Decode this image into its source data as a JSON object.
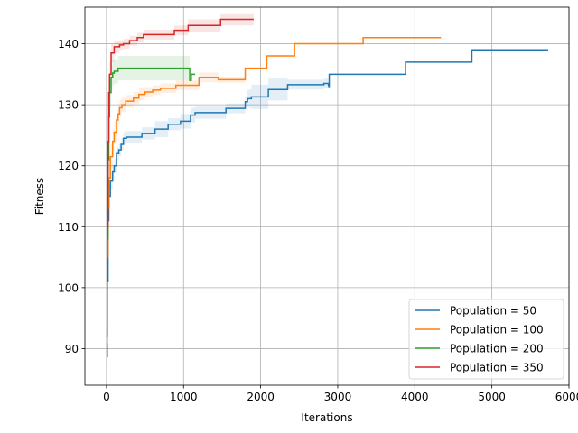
{
  "chart_data": {
    "type": "line",
    "title": "",
    "xlabel": "Iterations",
    "ylabel": "Fitness",
    "xlim": [
      -280,
      6000
    ],
    "ylim": [
      84,
      146
    ],
    "xticks": [
      0,
      1000,
      2000,
      3000,
      4000,
      5000,
      6000
    ],
    "yticks": [
      90,
      100,
      110,
      120,
      130,
      140
    ],
    "grid": true,
    "legend_position": "bottom-right",
    "series": [
      {
        "name": "Population = 50",
        "color": "#1f77b4",
        "x": [
          0,
          10,
          20,
          30,
          50,
          80,
          100,
          130,
          160,
          190,
          220,
          260,
          460,
          630,
          800,
          960,
          1090,
          1150,
          1550,
          1800,
          1830,
          1880,
          2100,
          2350,
          2820,
          2880,
          2885,
          2890,
          3880,
          4740,
          5730
        ],
        "y": [
          88.7,
          101,
          111,
          115,
          117.5,
          119,
          120,
          122,
          122.6,
          123.5,
          124.5,
          124.7,
          125.3,
          126,
          126.8,
          127.3,
          128.3,
          128.7,
          129.4,
          130.5,
          131,
          131.3,
          132.5,
          133.3,
          133.5,
          133.2,
          133,
          135,
          137,
          139,
          139
        ],
        "band_halfwidth": [
          2,
          2,
          2,
          2,
          1.5,
          1.2,
          1.2,
          1,
          1,
          1,
          1,
          1,
          1,
          1.3,
          1,
          1.2,
          1.2,
          1,
          0.8,
          0.8,
          1.5,
          2,
          1.8,
          0.8,
          0.8,
          0.5,
          0,
          0,
          0,
          0,
          0
        ]
      },
      {
        "name": "Population = 100",
        "color": "#ff7f0e",
        "x": [
          0,
          10,
          20,
          30,
          50,
          80,
          100,
          130,
          150,
          170,
          200,
          250,
          350,
          420,
          500,
          600,
          700,
          900,
          1200,
          1450,
          1800,
          2080,
          2440,
          3330,
          4340
        ],
        "y": [
          91,
          105,
          113,
          118,
          121.5,
          124,
          125.5,
          127.5,
          128.5,
          129.5,
          130,
          130.6,
          131.1,
          131.7,
          132.1,
          132.4,
          132.7,
          133.2,
          134.5,
          134.1,
          136,
          138,
          140,
          141,
          141
        ],
        "band_halfwidth": [
          2,
          2,
          2,
          2,
          2,
          2,
          1.8,
          1.6,
          1.5,
          1.4,
          1.2,
          1,
          1,
          1,
          0.8,
          0.8,
          0.8,
          0.8,
          0.8,
          0.5,
          0,
          0,
          0,
          0,
          0
        ]
      },
      {
        "name": "Population = 200",
        "color": "#2ca02c",
        "x": [
          0,
          10,
          20,
          30,
          40,
          60,
          80,
          100,
          150,
          1050,
          1080,
          1100,
          1150
        ],
        "y": [
          92,
          108,
          121,
          128,
          132,
          134.5,
          135.2,
          135.5,
          136,
          136,
          134,
          135,
          135
        ],
        "band_halfwidth": [
          2.5,
          3,
          3,
          3,
          2.5,
          2,
          2,
          2,
          2,
          2,
          0,
          0,
          0
        ]
      },
      {
        "name": "Population = 350",
        "color": "#d62728",
        "x": [
          0,
          10,
          20,
          30,
          40,
          60,
          100,
          170,
          220,
          300,
          400,
          480,
          880,
          1060,
          1480,
          1910
        ],
        "y": [
          92,
          110,
          124,
          132,
          135,
          138.5,
          139.5,
          139.8,
          140,
          140.5,
          141,
          141.5,
          142.2,
          143,
          144,
          144
        ],
        "band_halfwidth": [
          2.5,
          2.5,
          2.5,
          2.5,
          2,
          1.5,
          1,
          0.8,
          0.8,
          0.8,
          0.8,
          0.8,
          0.8,
          1,
          1,
          1
        ]
      }
    ]
  }
}
